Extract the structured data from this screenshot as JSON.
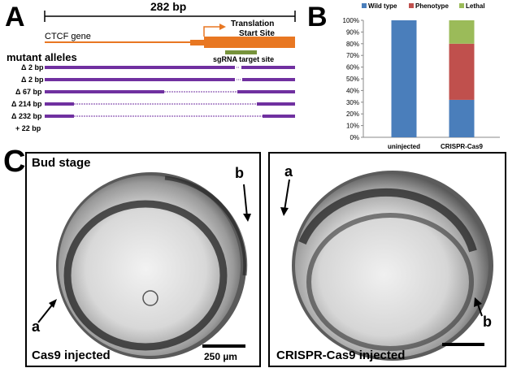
{
  "panelA": {
    "letter": "A",
    "length_label": "282 bp",
    "gene_label": "CTCF gene",
    "start_site_label": [
      "Translation",
      "Start Site"
    ],
    "sgrna_label": "sgRNA target site",
    "alleles_title": "mutant alleles",
    "alleles": [
      {
        "label": "Δ 2 bp"
      },
      {
        "label": "Δ 2 bp"
      },
      {
        "label": "Δ 67 bp"
      },
      {
        "label": "Δ 214 bp"
      },
      {
        "label": "Δ 232 bp"
      },
      {
        "label": "+ 22 bp"
      }
    ],
    "colors": {
      "gene": "#e87722",
      "allele": "#7030a0",
      "sgrna": "#77933c"
    }
  },
  "panelB": {
    "letter": "B",
    "chart_data": {
      "type": "bar",
      "stacked": true,
      "categories": [
        "uninjected",
        "CRISPR-Cas9"
      ],
      "series": [
        {
          "name": "Wild type",
          "color": "#4a7ebb",
          "values": [
            100,
            32
          ]
        },
        {
          "name": "Phenotype",
          "color": "#c0504d",
          "values": [
            0,
            48
          ]
        },
        {
          "name": "Lethal",
          "color": "#9bbb59",
          "values": [
            0,
            20
          ]
        }
      ],
      "yticks": [
        "0%",
        "10%",
        "20%",
        "30%",
        "40%",
        "50%",
        "60%",
        "70%",
        "80%",
        "90%",
        "100%"
      ],
      "ylim": [
        0,
        100
      ],
      "legend": "top"
    }
  },
  "panelC": {
    "letter": "C",
    "left": {
      "stage": "Bud stage",
      "caption": "Cas9 injected",
      "label_a": "a",
      "label_b": "b",
      "scale": "250 µm"
    },
    "right": {
      "caption": "CRISPR-Cas9 injected",
      "label_a": "a",
      "label_b": "b"
    }
  }
}
